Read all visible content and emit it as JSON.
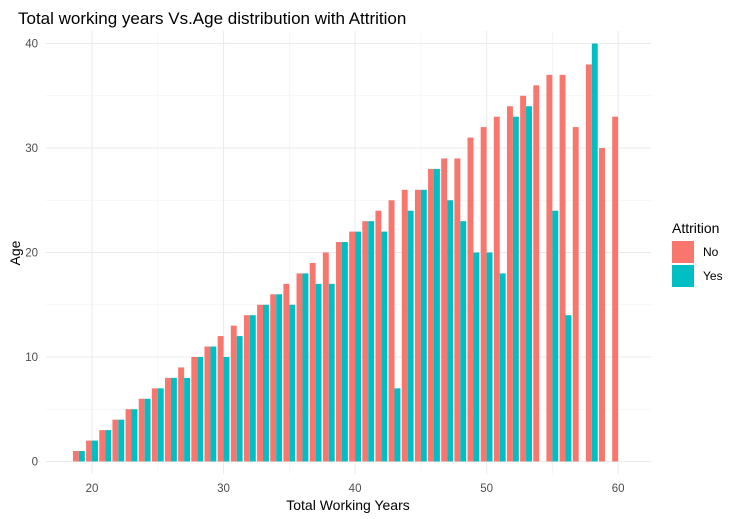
{
  "chart_data": {
    "type": "bar",
    "title": "Total working years Vs.Age distribution with Attrition",
    "xlabel": "Total Working Years",
    "ylabel": "Age",
    "xlim": [
      16.5,
      62.5
    ],
    "ylim": [
      -1.2,
      41.2
    ],
    "x_ticks": [
      20,
      30,
      40,
      50,
      60
    ],
    "y_ticks": [
      0,
      10,
      20,
      30,
      40
    ],
    "grid": true,
    "legend": {
      "title": "Attrition",
      "position": "right"
    },
    "series": [
      {
        "name": "No",
        "color": "#F8766D",
        "points": [
          [
            19,
            1
          ],
          [
            20,
            2
          ],
          [
            21,
            3
          ],
          [
            22,
            4
          ],
          [
            23,
            5
          ],
          [
            24,
            6
          ],
          [
            25,
            7
          ],
          [
            26,
            8
          ],
          [
            27,
            9
          ],
          [
            28,
            10
          ],
          [
            29,
            11
          ],
          [
            30,
            12
          ],
          [
            31,
            13
          ],
          [
            32,
            14
          ],
          [
            33,
            15
          ],
          [
            34,
            16
          ],
          [
            35,
            17
          ],
          [
            36,
            18
          ],
          [
            37,
            19
          ],
          [
            38,
            20
          ],
          [
            39,
            21
          ],
          [
            40,
            22
          ],
          [
            41,
            23
          ],
          [
            42,
            24
          ],
          [
            43,
            25
          ],
          [
            44,
            26
          ],
          [
            45,
            26
          ],
          [
            46,
            28
          ],
          [
            47,
            29
          ],
          [
            48,
            29
          ],
          [
            49,
            31
          ],
          [
            50,
            32
          ],
          [
            51,
            33
          ],
          [
            52,
            34
          ],
          [
            53,
            35
          ],
          [
            54,
            36
          ],
          [
            55,
            37
          ],
          [
            56,
            37
          ],
          [
            57,
            32
          ],
          [
            58,
            38
          ],
          [
            59,
            30
          ],
          [
            60,
            33
          ]
        ]
      },
      {
        "name": "Yes",
        "color": "#00BFC4",
        "points": [
          [
            19,
            1
          ],
          [
            20,
            2
          ],
          [
            21,
            3
          ],
          [
            22,
            4
          ],
          [
            23,
            5
          ],
          [
            24,
            6
          ],
          [
            25,
            7
          ],
          [
            26,
            8
          ],
          [
            27,
            8
          ],
          [
            28,
            10
          ],
          [
            29,
            11
          ],
          [
            30,
            10
          ],
          [
            31,
            12
          ],
          [
            32,
            14
          ],
          [
            33,
            15
          ],
          [
            34,
            16
          ],
          [
            35,
            15
          ],
          [
            36,
            18
          ],
          [
            37,
            17
          ],
          [
            38,
            17
          ],
          [
            39,
            21
          ],
          [
            40,
            22
          ],
          [
            41,
            23
          ],
          [
            42,
            22
          ],
          [
            43,
            7
          ],
          [
            44,
            24
          ],
          [
            45,
            26
          ],
          [
            46,
            28
          ],
          [
            47,
            25
          ],
          [
            48,
            23
          ],
          [
            49,
            20
          ],
          [
            50,
            20
          ],
          [
            51,
            18
          ],
          [
            52,
            33
          ],
          [
            53,
            34
          ],
          [
            55,
            24
          ],
          [
            56,
            14
          ],
          [
            58,
            40
          ]
        ]
      }
    ]
  }
}
